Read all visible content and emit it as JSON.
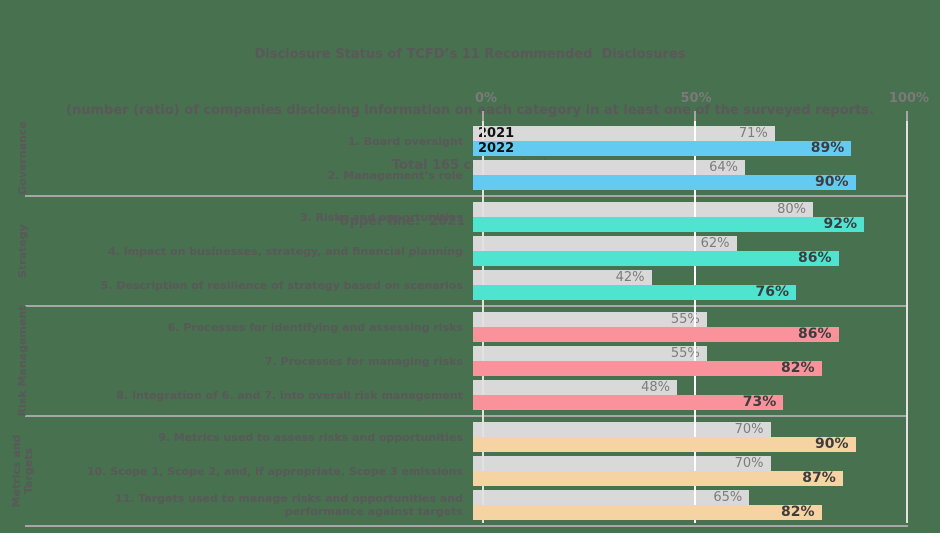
{
  "title": {
    "line1": "Disclosure Status of TCFD’s 11 Recommended  Disclosures",
    "line2": "(number (ratio) of companies disclosing information on each category in at least one of the surveyed reports.",
    "line3": "Total 165 companies)",
    "line4": "Upper line:  2021  Lower line:  2022"
  },
  "legend": {
    "upper": "2021",
    "lower": "2022"
  },
  "colors": {
    "background": "#47714F",
    "title_text": "#595959",
    "label_text": "#595959",
    "bar_2021": "#D9D9D9",
    "value_2021_text": "#7C7C7C",
    "value_2022_text": "#3D3D3D",
    "series_tag_text": "#111111",
    "divider": "#A6A6A6",
    "gridline": "#E4E1DE",
    "gridline_50": "#FFFFFF",
    "axis_text": "#7A7A7A",
    "governance": "#63CBF2",
    "strategy": "#4EE4D0",
    "risk_management": "#F9929B",
    "metrics_and_targets": "#F6D3A2"
  },
  "chart_data": {
    "type": "bar",
    "orientation": "horizontal",
    "title": "Disclosure Status of TCFD’s 11 Recommended Disclosures",
    "subtitle": "(number (ratio) of companies disclosing information on each category in at least one of the surveyed reports. Total 165 companies)",
    "note": "Upper line: 2021  Lower line: 2022",
    "x_ticks": [
      "0%",
      "50%",
      "100%"
    ],
    "xlim": [
      0,
      100
    ],
    "grid": "vertical lines at 0%, 50%, 100%",
    "series_names": [
      "2021",
      "2022"
    ],
    "groups": [
      {
        "name": "Governance",
        "color": "#63CBF2",
        "rows": [
          {
            "label": "1. Board oversight",
            "y2021": 71,
            "y2022": 89
          },
          {
            "label": "2. Management’s role",
            "y2021": 64,
            "y2022": 90
          }
        ]
      },
      {
        "name": "Strategy",
        "color": "#4EE4D0",
        "rows": [
          {
            "label": "3. Risks and opportunities",
            "y2021": 80,
            "y2022": 92
          },
          {
            "label": "4. Impact on businesses, strategy, and financial planning",
            "y2021": 62,
            "y2022": 86
          },
          {
            "label": "5. Description of resilience of strategy based on scenarios",
            "y2021": 42,
            "y2022": 76
          }
        ]
      },
      {
        "name": "Risk Management",
        "color": "#F9929B",
        "rows": [
          {
            "label": "6. Processes for identifying and assessing risks",
            "y2021": 55,
            "y2022": 86
          },
          {
            "label": "7. Processes for managing risks",
            "y2021": 55,
            "y2022": 82
          },
          {
            "label": "8. Integration of 6. and 7. into overall risk management",
            "y2021": 48,
            "y2022": 73
          }
        ]
      },
      {
        "name": "Metrics and Targets",
        "color": "#F6D3A2",
        "rows": [
          {
            "label": "9. Metrics used to assess risks and opportunities",
            "y2021": 70,
            "y2022": 90
          },
          {
            "label": "10. Scope 1, Scope 2, and, if appropriate, Scope 3 emissions",
            "y2021": 70,
            "y2022": 87
          },
          {
            "label": "11. Targets used to manage risks and opportunities and performance against targets",
            "y2021": 65,
            "y2022": 82
          }
        ]
      }
    ]
  }
}
